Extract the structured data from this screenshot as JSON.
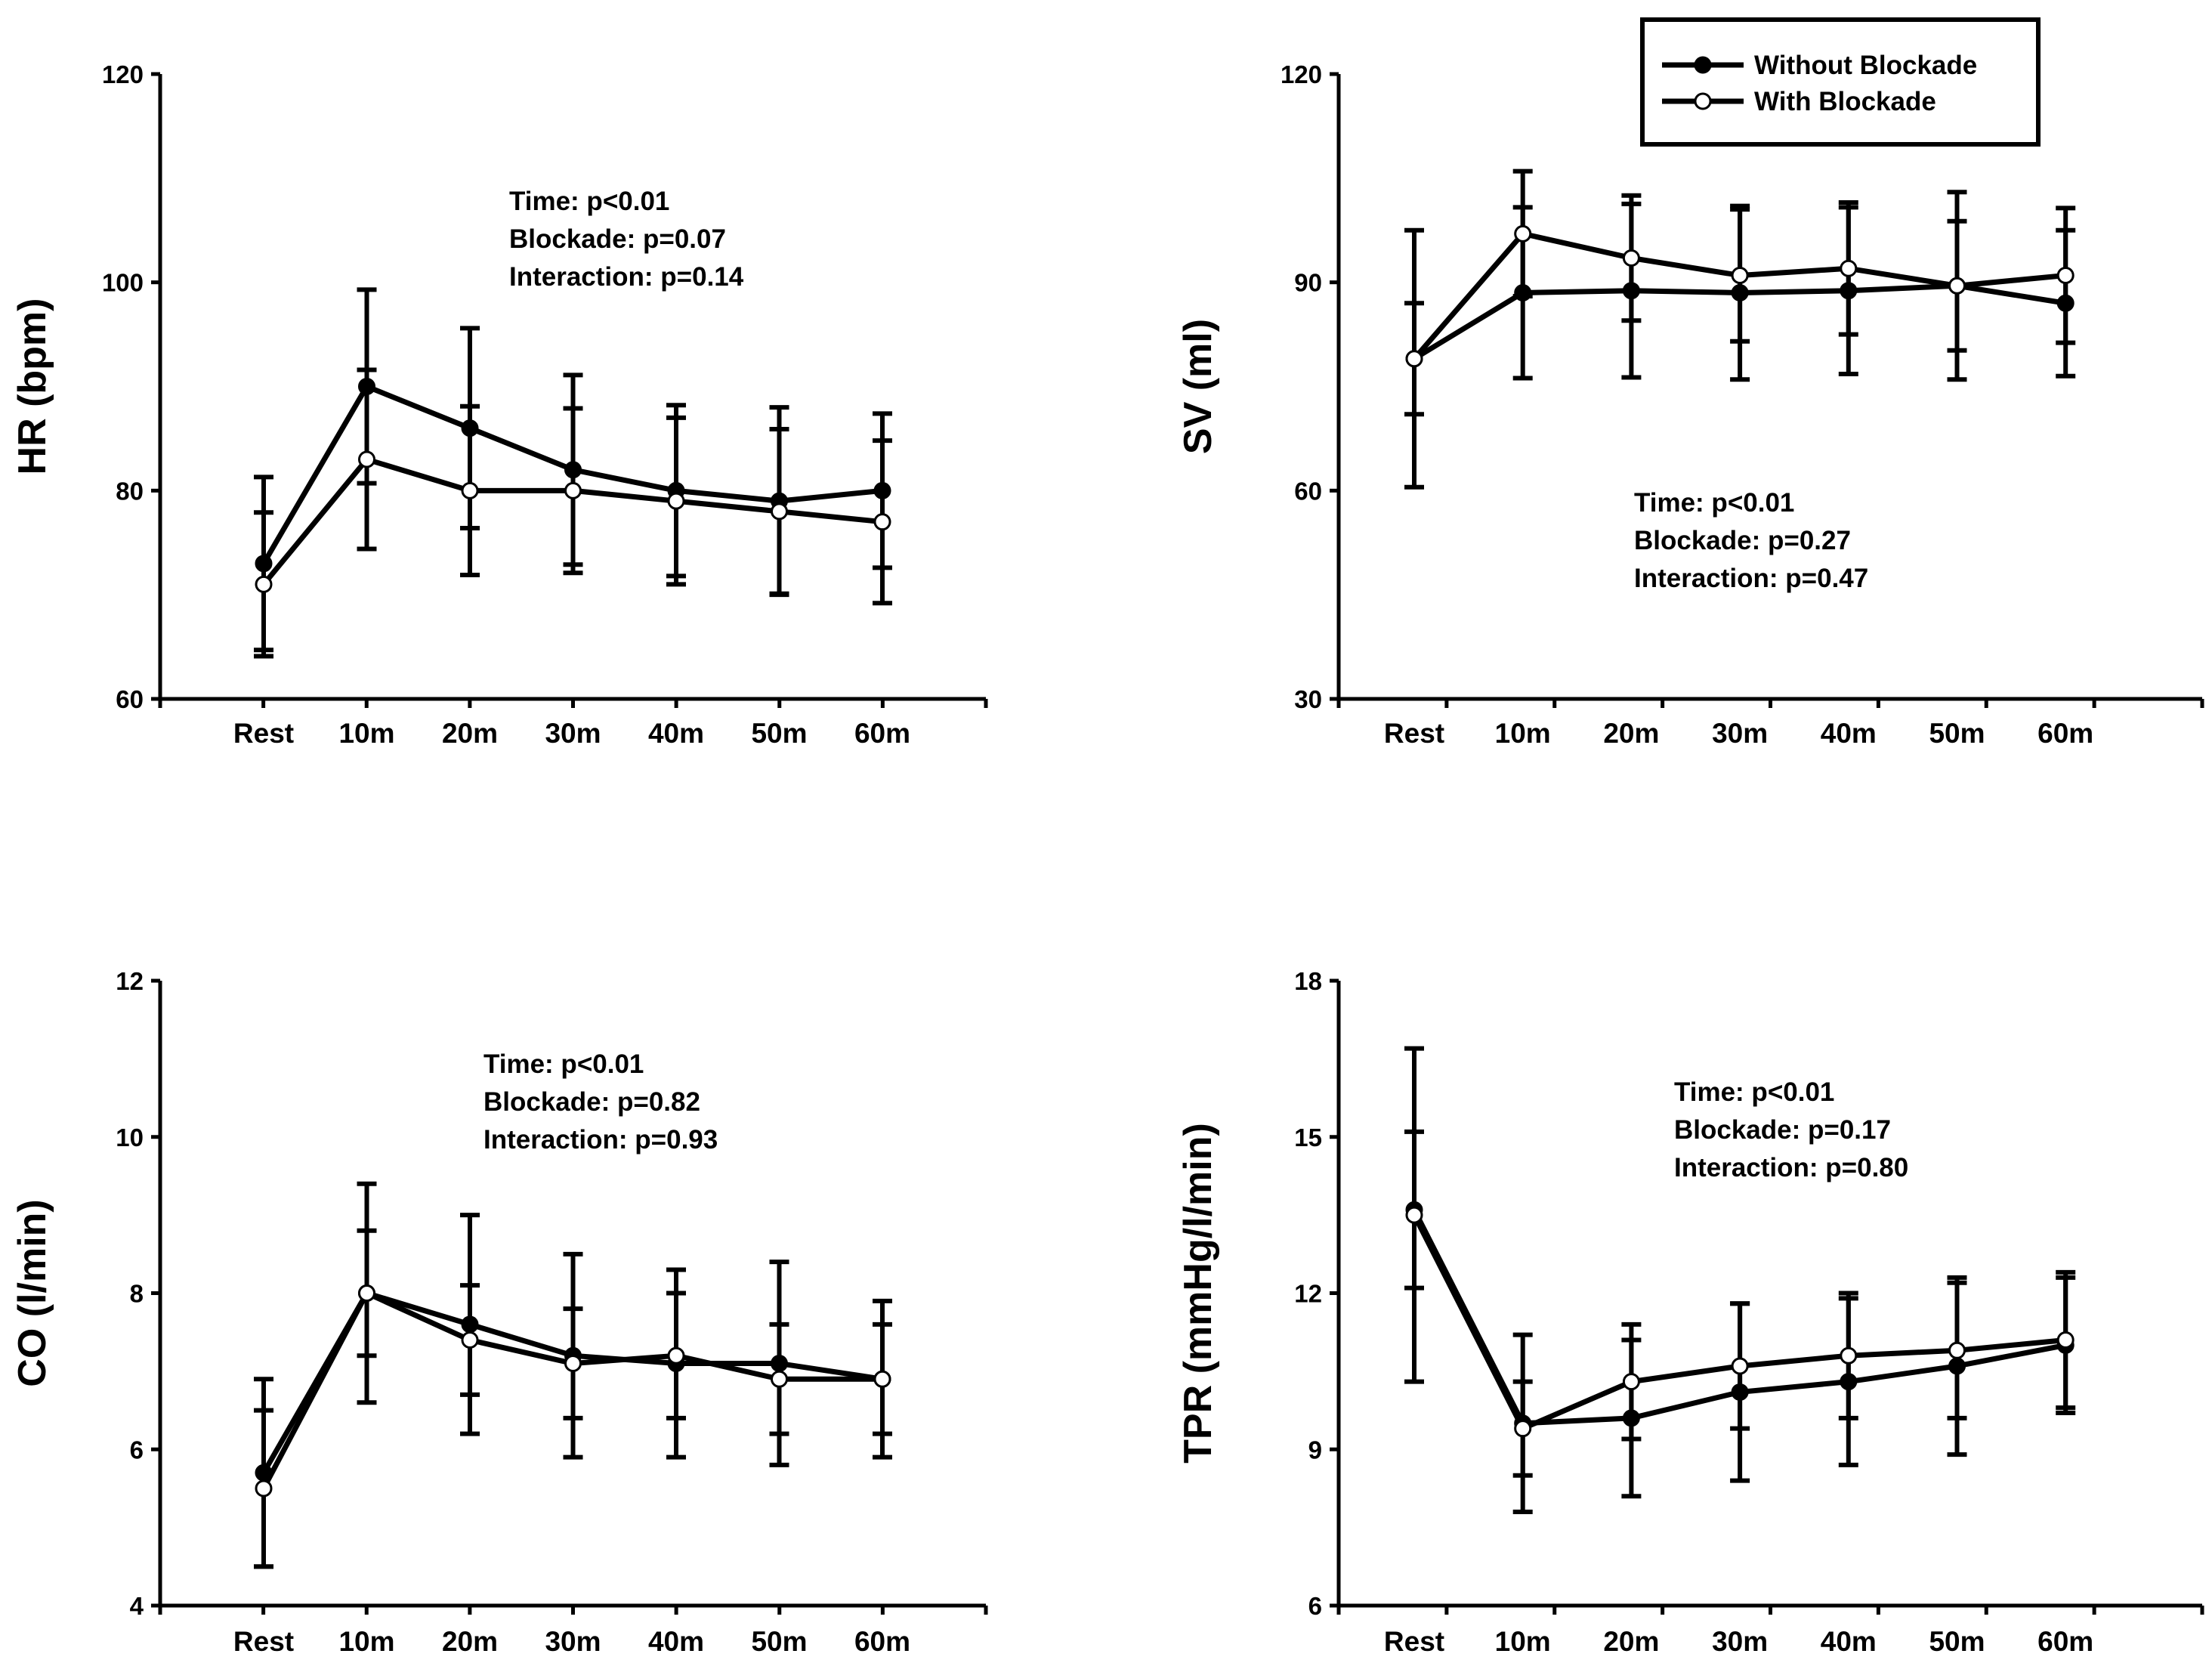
{
  "legend": {
    "entries": [
      {
        "name": "Without Blockade",
        "marker": "filled-circle"
      },
      {
        "name": "With Blockade",
        "marker": "open-circle"
      }
    ]
  },
  "chart_data": [
    {
      "id": "hr",
      "type": "line",
      "ylabel": "HR (bpm)",
      "xlabel": "",
      "categories": [
        "Rest",
        "10m",
        "20m",
        "30m",
        "40m",
        "50m",
        "60m"
      ],
      "ylim": [
        60,
        120
      ],
      "yticks": [
        60,
        80,
        100,
        120
      ],
      "stats": [
        "Time: p<0.01",
        "Blockade: p=0.07",
        "Interaction: p=0.14"
      ],
      "stats_position": "top-center",
      "series": [
        {
          "name": "Without Blockade",
          "values": [
            73,
            90,
            86,
            82,
            80,
            79,
            80
          ],
          "err": [
            8.3,
            9.3,
            9.6,
            9.1,
            8.2,
            9.0,
            7.4
          ]
        },
        {
          "name": "With Blockade",
          "values": [
            71,
            83,
            80,
            80,
            79,
            78,
            77
          ],
          "err": [
            6.9,
            8.6,
            8.1,
            7.9,
            8.0,
            7.9,
            7.8
          ]
        }
      ]
    },
    {
      "id": "sv",
      "type": "line",
      "ylabel": "SV (ml)",
      "xlabel": "",
      "categories": [
        "Rest",
        "10m",
        "20m",
        "30m",
        "40m",
        "50m",
        "60m"
      ],
      "ylim": [
        30,
        120
      ],
      "yticks": [
        30,
        60,
        90,
        120
      ],
      "stats": [
        "Time: p<0.01",
        "Blockade: p=0.27",
        "Interaction: p=0.47"
      ],
      "stats_position": "center-right",
      "series": [
        {
          "name": "Without Blockade",
          "values": [
            79,
            88.5,
            88.8,
            88.5,
            88.8,
            89.5,
            87
          ],
          "err": [
            8,
            12.3,
            12.5,
            12.5,
            12.0,
            13.5,
            10.5
          ]
        },
        {
          "name": "With Blockade",
          "values": [
            79,
            97,
            93.5,
            91,
            92,
            89.5,
            91
          ],
          "err": [
            18.5,
            9,
            9,
            9.5,
            9.5,
            9.3,
            9.7
          ]
        }
      ]
    },
    {
      "id": "co",
      "type": "line",
      "ylabel": "CO (l/min)",
      "xlabel": "",
      "categories": [
        "Rest",
        "10m",
        "20m",
        "30m",
        "40m",
        "50m",
        "60m"
      ],
      "ylim": [
        4,
        12
      ],
      "yticks": [
        4,
        6,
        8,
        10,
        12
      ],
      "stats": [
        "Time: p<0.01",
        "Blockade: p=0.82",
        "Interaction: p=0.93"
      ],
      "stats_position": "top-center",
      "series": [
        {
          "name": "Without Blockade",
          "values": [
            5.7,
            8.0,
            7.6,
            7.2,
            7.1,
            7.1,
            6.9
          ],
          "err": [
            1.2,
            1.4,
            1.4,
            1.3,
            1.2,
            1.3,
            1.0
          ]
        },
        {
          "name": "With Blockade",
          "values": [
            5.5,
            8.0,
            7.4,
            7.1,
            7.2,
            6.9,
            6.9
          ],
          "err": [
            1.0,
            0.8,
            0.7,
            0.7,
            0.8,
            0.7,
            0.7
          ]
        }
      ]
    },
    {
      "id": "tpr",
      "type": "line",
      "ylabel": "TPR (mmHg/l/min)",
      "xlabel": "",
      "categories": [
        "Rest",
        "10m",
        "20m",
        "30m",
        "40m",
        "50m",
        "60m"
      ],
      "ylim": [
        6,
        18
      ],
      "yticks": [
        6,
        9,
        12,
        15,
        18
      ],
      "stats": [
        "Time: p<0.01",
        "Blockade: p=0.17",
        "Interaction: p=0.80"
      ],
      "stats_position": "top-center",
      "series": [
        {
          "name": "Without Blockade",
          "values": [
            13.6,
            9.5,
            9.6,
            10.1,
            10.3,
            10.6,
            11.0
          ],
          "err": [
            1.5,
            1.7,
            1.5,
            1.7,
            1.6,
            1.7,
            1.3
          ]
        },
        {
          "name": "With Blockade",
          "values": [
            13.5,
            9.4,
            10.3,
            10.6,
            10.8,
            10.9,
            11.1
          ],
          "err": [
            3.2,
            0.9,
            1.1,
            1.2,
            1.2,
            1.3,
            1.3
          ]
        }
      ]
    }
  ]
}
